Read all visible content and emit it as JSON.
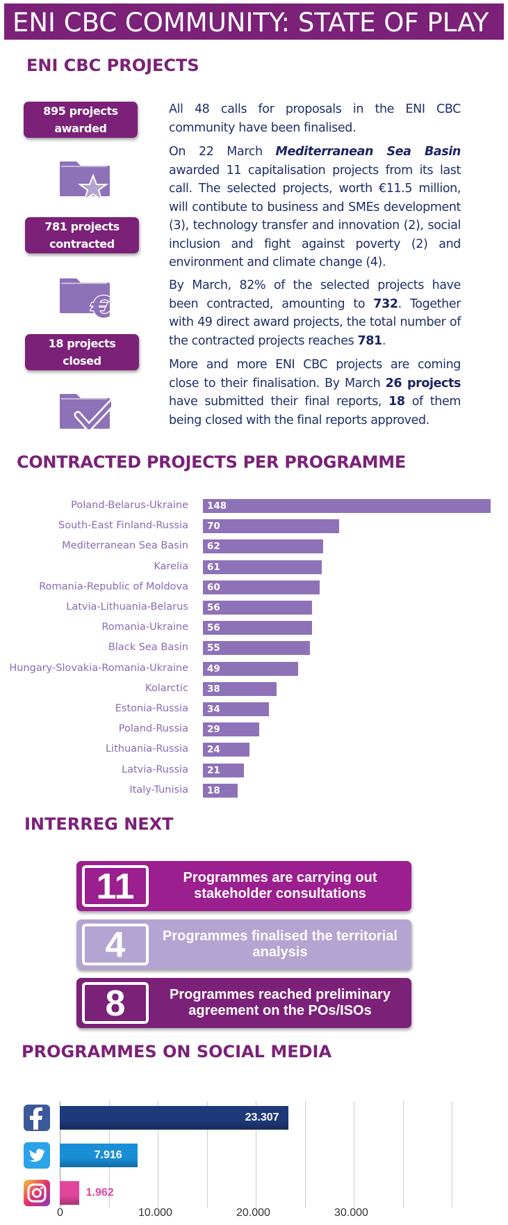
{
  "header": {
    "title": "ENI CBC COMMUNITY: STATE OF PLAY"
  },
  "projects": {
    "title": "ENI CBC PROJECTS",
    "badges": [
      {
        "line1": "895 projects",
        "line2": "awarded",
        "icon": "folder-star-icon"
      },
      {
        "line1": "781 projects",
        "line2": "contracted",
        "icon": "folder-euro-icon"
      },
      {
        "line1": "18 projects",
        "line2": "closed",
        "icon": "folder-check-icon"
      }
    ],
    "paragraphs": {
      "p1": "All 48 calls for proposals in the ENI CBC community have been finalised.",
      "p2_a": "On 22 March ",
      "p2_b": "Mediterranean Sea Basin",
      "p2_c": " awarded 11 capitalisation projects from its last call. The selected projects, worth €11.5 million, will contibute to business and SMEs development (3), technology transfer and innovation (2), social inclusion and fight against poverty (2) and environment and climate change (4).",
      "p3_a": "By March, 82% of the selected projects have been contracted, amounting to ",
      "p3_b": "732",
      "p3_c": ". Together with 49 direct award projects, the total number of the contracted projects reaches ",
      "p3_d": "781",
      "p3_e": ".",
      "p4_a": "More and more ENI CBC projects are coming close to their finalisation. By March ",
      "p4_b": "26 projects",
      "p4_c": " have submitted their final reports, ",
      "p4_d": "18",
      "p4_e": " of them being closed with the final reports approved."
    }
  },
  "contracted": {
    "title": "CONTRACTED PROJECTS PER PROGRAMME"
  },
  "chart_data": [
    {
      "type": "bar",
      "orientation": "horizontal",
      "title": "CONTRACTED PROJECTS PER PROGRAMME",
      "categories": [
        "Poland-Belarus-Ukraine",
        "South-East Finland-Russia",
        "Mediterranean Sea Basin",
        "Karelia",
        "Romania-Republic of Moldova",
        "Latvia-Lithuania-Belarus",
        "Romania-Ukraine",
        "Black Sea Basin",
        "Hungary-Slovakia-Romania-Ukraine",
        "Kolarctic",
        "Estonia-Russia",
        "Poland-Russia",
        "Lithuania-Russia",
        "Latvia-Russia",
        "Italy-Tunisia"
      ],
      "values": [
        148,
        70,
        62,
        61,
        60,
        56,
        56,
        55,
        49,
        38,
        34,
        29,
        24,
        21,
        18
      ],
      "color": "#8e72b8",
      "data_labels": "inside",
      "grid": false
    },
    {
      "type": "bar",
      "orientation": "horizontal",
      "title": "PROGRAMMES ON SOCIAL MEDIA",
      "categories": [
        "facebook-icon",
        "twitter-icon",
        "instagram-icon"
      ],
      "values": [
        23307,
        7916,
        1962
      ],
      "value_labels": [
        "23.307",
        "7.916",
        "1.962"
      ],
      "colors": [
        "#1f3a7a",
        "#1a8fd8",
        "#e0469b"
      ],
      "xlim": [
        0,
        40000
      ],
      "x_ticks": [
        "0",
        "10.000",
        "20.000",
        "30.000"
      ],
      "grid": true
    }
  ],
  "interreg": {
    "title": "INTERREG NEXT",
    "items": [
      {
        "number": "11",
        "text": "Programmes are carrying out stakeholder consultations",
        "color": "#9b1f8e"
      },
      {
        "number": "4",
        "text": "Programmes finalised the territorial analysis",
        "color": "#b4a4d2"
      },
      {
        "number": "8",
        "text": "Programmes reached preliminary agreement on the POs/ISOs",
        "color": "#7b2178"
      }
    ]
  },
  "social": {
    "title": "PROGRAMMES ON SOCIAL MEDIA"
  },
  "colors": {
    "brand": "#7b2178",
    "text": "#1f2f6a",
    "bar": "#8e72b8"
  }
}
